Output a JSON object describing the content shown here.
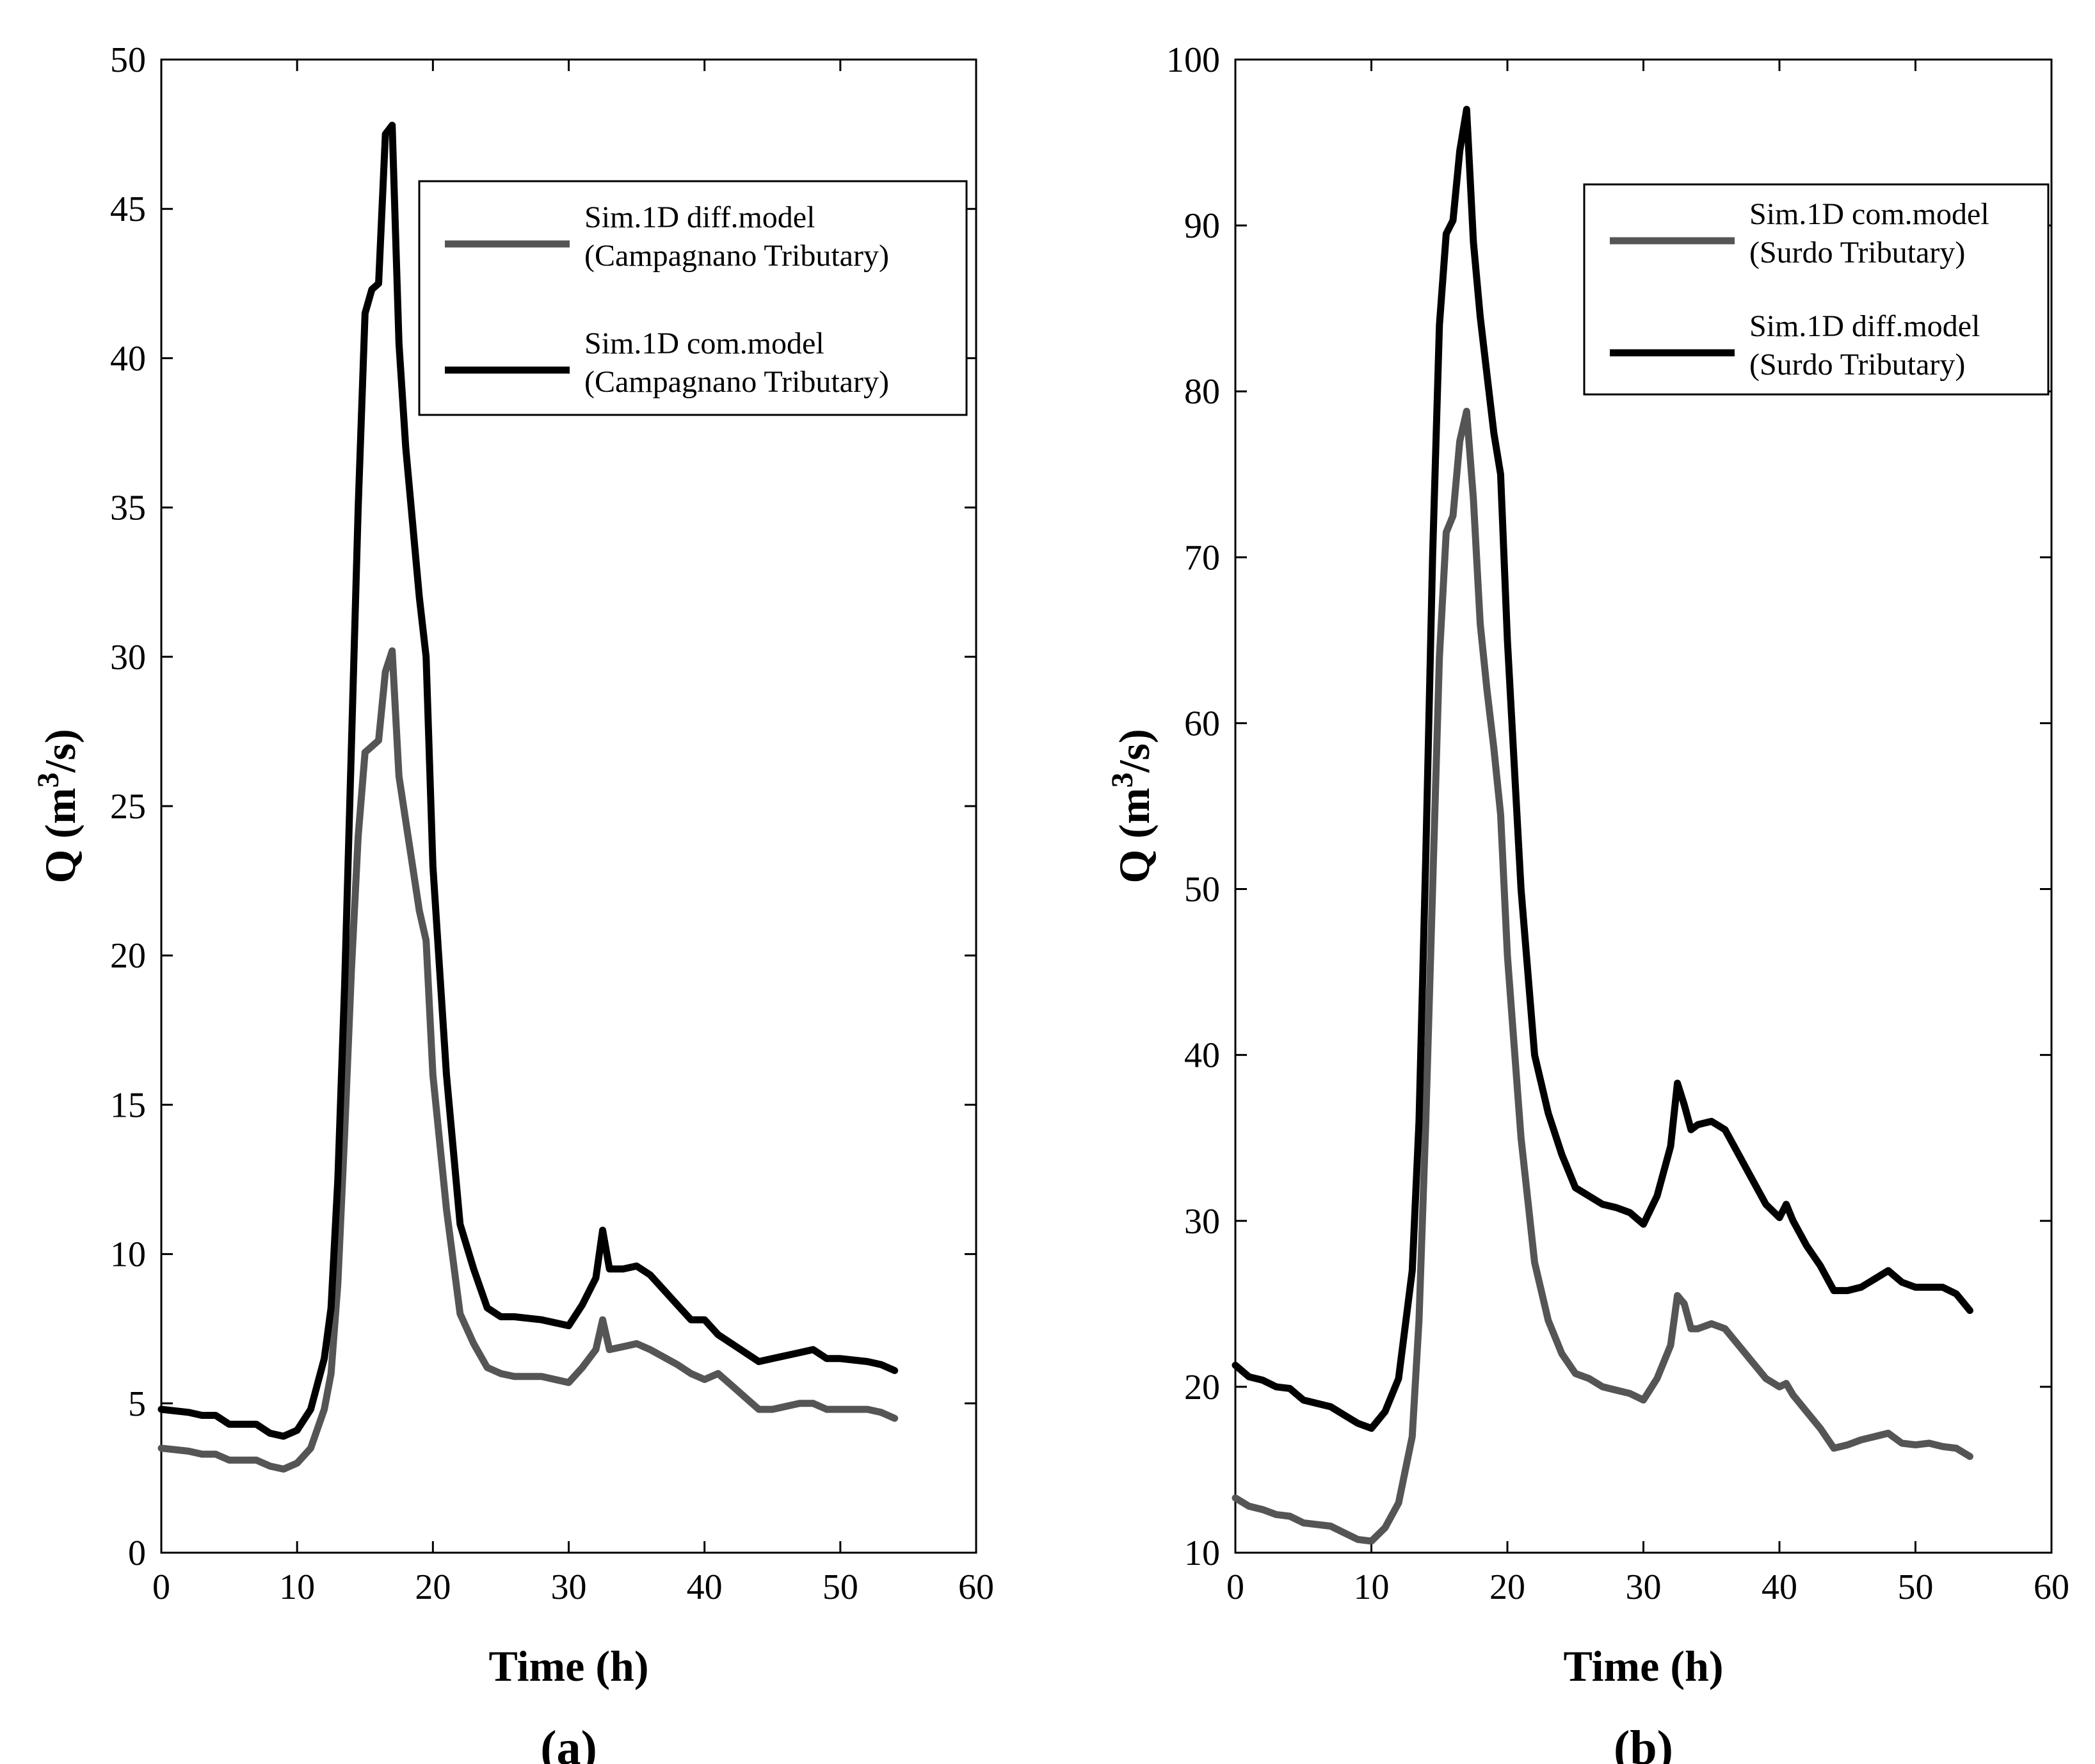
{
  "chart_data": [
    {
      "type": "line",
      "panel_label": "(a)",
      "xlabel": "Time (h)",
      "ylabel": {
        "main": "Q (m",
        "sup": "3",
        "end": "/s)"
      },
      "xlim": [
        0,
        60
      ],
      "ylim": [
        0,
        50
      ],
      "xticks": [
        0,
        10,
        20,
        30,
        40,
        50,
        60
      ],
      "yticks": [
        0,
        5,
        10,
        15,
        20,
        25,
        30,
        35,
        40,
        45,
        50
      ],
      "legend_position": "upper-right",
      "series": [
        {
          "name": "Sim.1D diff.model",
          "name_line2": "(Campagnano Tributary)",
          "color": "#555555",
          "x": [
            0,
            2,
            3,
            4,
            5,
            7,
            8,
            9,
            10,
            11,
            12,
            12.5,
            13,
            13.5,
            14,
            14.5,
            15,
            15.5,
            16,
            16.5,
            17,
            17.5,
            18,
            19,
            19.5,
            20,
            21,
            22,
            23,
            24,
            25,
            26,
            28,
            30,
            31,
            32,
            32.5,
            33,
            34,
            35,
            36,
            38,
            39,
            40,
            41,
            42,
            43,
            44,
            45,
            47,
            48,
            49,
            50,
            52,
            53,
            54
          ],
          "values": [
            3.5,
            3.4,
            3.3,
            3.3,
            3.1,
            3.1,
            2.9,
            2.8,
            3.0,
            3.5,
            4.8,
            6.0,
            9.0,
            14.0,
            19.5,
            24.0,
            26.8,
            27.0,
            27.2,
            29.5,
            30.2,
            26.0,
            24.5,
            21.5,
            20.5,
            16.0,
            11.5,
            8.0,
            7.0,
            6.2,
            6.0,
            5.9,
            5.9,
            5.7,
            6.2,
            6.8,
            7.8,
            6.8,
            6.9,
            7.0,
            6.8,
            6.3,
            6.0,
            5.8,
            6.0,
            5.6,
            5.2,
            4.8,
            4.8,
            5.0,
            5.0,
            4.8,
            4.8,
            4.8,
            4.7,
            4.5
          ]
        },
        {
          "name": "Sim.1D com.model",
          "name_line2": "(Campagnano Tributary)",
          "color": "#000000",
          "x": [
            0,
            2,
            3,
            4,
            5,
            7,
            8,
            9,
            10,
            11,
            12,
            12.5,
            13,
            13.5,
            14,
            14.5,
            15,
            15.5,
            16,
            16.5,
            17,
            17.5,
            18,
            19,
            19.5,
            20,
            21,
            22,
            23,
            24,
            25,
            26,
            28,
            30,
            31,
            32,
            32.5,
            33,
            34,
            35,
            36,
            38,
            39,
            40,
            41,
            42,
            43,
            44,
            45,
            47,
            48,
            49,
            50,
            52,
            53,
            54
          ],
          "values": [
            4.8,
            4.7,
            4.6,
            4.6,
            4.3,
            4.3,
            4.0,
            3.9,
            4.1,
            4.8,
            6.5,
            8.2,
            12.5,
            19.0,
            27.0,
            35.0,
            41.5,
            42.3,
            42.5,
            47.5,
            47.8,
            40.5,
            37.0,
            32.0,
            30.0,
            23.0,
            16.0,
            11.0,
            9.5,
            8.2,
            7.9,
            7.9,
            7.8,
            7.6,
            8.3,
            9.2,
            10.8,
            9.5,
            9.5,
            9.6,
            9.3,
            8.3,
            7.8,
            7.8,
            7.3,
            7.0,
            6.7,
            6.4,
            6.5,
            6.7,
            6.8,
            6.5,
            6.5,
            6.4,
            6.3,
            6.1
          ]
        }
      ]
    },
    {
      "type": "line",
      "panel_label": "(b)",
      "xlabel": "Time (h)",
      "ylabel": {
        "main": "Q (m",
        "sup": "3",
        "end": "/s)"
      },
      "xlim": [
        0,
        60
      ],
      "ylim": [
        10,
        100
      ],
      "xticks": [
        0,
        10,
        20,
        30,
        40,
        50,
        60
      ],
      "yticks": [
        10,
        20,
        30,
        40,
        50,
        60,
        70,
        80,
        90,
        100
      ],
      "legend_position": "upper-right",
      "series": [
        {
          "name": "Sim.1D com.model",
          "name_line2": "(Surdo Tributary)",
          "color": "#555555",
          "x": [
            0,
            1,
            2,
            3,
            4,
            5,
            7,
            8,
            9,
            10,
            11,
            12,
            13,
            13.5,
            14,
            14.5,
            15,
            15.5,
            16,
            16.5,
            17,
            17.5,
            18,
            18.5,
            19,
            19.5,
            20,
            21,
            22,
            23,
            24,
            25,
            26,
            27,
            28,
            29,
            30,
            31,
            32,
            32.5,
            33,
            33.5,
            34,
            35,
            36,
            37,
            38,
            39,
            40,
            40.5,
            41,
            42,
            43,
            44,
            45,
            46,
            47,
            48,
            49,
            50,
            51,
            52,
            53,
            54
          ],
          "values": [
            13.3,
            12.8,
            12.6,
            12.3,
            12.2,
            11.8,
            11.6,
            11.2,
            10.8,
            10.7,
            11.5,
            13.0,
            17.0,
            24.0,
            36.0,
            50.0,
            64.0,
            71.5,
            72.5,
            77.0,
            78.8,
            73.5,
            66.0,
            62.0,
            58.5,
            54.5,
            46.0,
            35.0,
            27.5,
            24.0,
            22.0,
            20.8,
            20.5,
            20.0,
            19.8,
            19.6,
            19.2,
            20.5,
            22.5,
            25.5,
            25.0,
            23.5,
            23.5,
            23.8,
            23.5,
            22.5,
            21.5,
            20.5,
            20.0,
            20.2,
            19.5,
            18.5,
            17.5,
            16.3,
            16.5,
            16.8,
            17.0,
            17.2,
            16.6,
            16.5,
            16.6,
            16.4,
            16.3,
            15.8
          ]
        },
        {
          "name": "Sim.1D diff.model",
          "name_line2": "(Surdo Tributary)",
          "color": "#000000",
          "x": [
            0,
            1,
            2,
            3,
            4,
            5,
            7,
            8,
            9,
            10,
            11,
            12,
            13,
            13.5,
            14,
            14.5,
            15,
            15.5,
            16,
            16.5,
            17,
            17.5,
            18,
            18.5,
            19,
            19.5,
            20,
            21,
            22,
            23,
            24,
            25,
            26,
            27,
            28,
            29,
            30,
            31,
            32,
            32.5,
            33,
            33.5,
            34,
            35,
            36,
            37,
            38,
            39,
            40,
            40.5,
            41,
            42,
            43,
            44,
            45,
            46,
            47,
            48,
            49,
            50,
            51,
            52,
            53,
            54
          ],
          "values": [
            21.3,
            20.6,
            20.4,
            20.0,
            19.9,
            19.2,
            18.8,
            18.3,
            17.8,
            17.5,
            18.5,
            20.5,
            27.0,
            36.0,
            52.0,
            70.0,
            84.0,
            89.5,
            90.3,
            94.5,
            97.0,
            89.0,
            84.5,
            81.0,
            77.5,
            75.0,
            65.0,
            50.0,
            40.0,
            36.5,
            34.0,
            32.0,
            31.5,
            31.0,
            30.8,
            30.5,
            29.8,
            31.5,
            34.5,
            38.3,
            37.0,
            35.5,
            35.8,
            36.0,
            35.5,
            34.0,
            32.5,
            31.0,
            30.2,
            31.0,
            30.0,
            28.5,
            27.3,
            25.8,
            25.8,
            26.0,
            26.5,
            27.0,
            26.3,
            26.0,
            26.0,
            26.0,
            25.6,
            24.6
          ]
        }
      ]
    }
  ]
}
